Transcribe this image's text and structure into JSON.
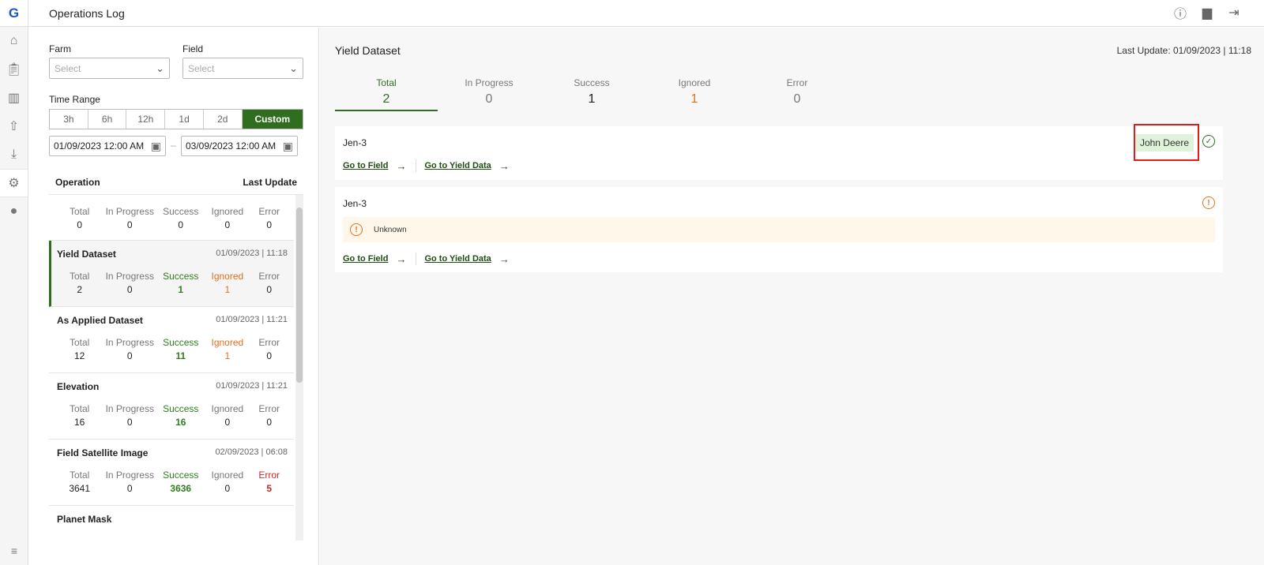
{
  "app": {
    "logo": "G",
    "title": "Operations Log"
  },
  "rail": [
    "home-icon",
    "clipboard-icon",
    "map-icon",
    "upload-icon",
    "download-icon",
    "operations-icon",
    "account-icon"
  ],
  "header_icons": [
    "help-icon",
    "chat-icon",
    "logout-icon"
  ],
  "filters": {
    "farm_label": "Farm",
    "farm_placeholder": "Select",
    "field_label": "Field",
    "field_placeholder": "Select",
    "time_range_label": "Time Range",
    "ranges": [
      "3h",
      "6h",
      "12h",
      "1d",
      "2d",
      "Custom"
    ],
    "selected_range": "Custom",
    "start": "01/09/2023 12:00 AM",
    "end": "03/09/2023 12:00 AM",
    "dash": "–"
  },
  "list_header": {
    "operation": "Operation",
    "last_update": "Last Update"
  },
  "stat_labels": [
    "Total",
    "In Progress",
    "Success",
    "Ignored",
    "Error"
  ],
  "operations": [
    {
      "name": "",
      "date": "",
      "values": [
        "0",
        "0",
        "0",
        "0",
        "0"
      ]
    },
    {
      "name": "Yield Dataset",
      "date": "01/09/2023 | 11:18",
      "values": [
        "2",
        "0",
        "1",
        "1",
        "0"
      ]
    },
    {
      "name": "As Applied Dataset",
      "date": "01/09/2023 | 11:21",
      "values": [
        "12",
        "0",
        "11",
        "1",
        "0"
      ]
    },
    {
      "name": "Elevation",
      "date": "01/09/2023 | 11:21",
      "values": [
        "16",
        "0",
        "16",
        "0",
        "0"
      ]
    },
    {
      "name": "Field Satellite Image",
      "date": "02/09/2023 | 06:08",
      "values": [
        "3641",
        "0",
        "3636",
        "0",
        "5"
      ]
    },
    {
      "name": "Planet Mask",
      "date": "",
      "values": [
        "",
        "",
        "",
        "",
        ""
      ]
    }
  ],
  "main": {
    "title": "Yield Dataset",
    "last_update": "Last Update: 01/09/2023 | 11:18",
    "tabs": [
      {
        "label": "Total",
        "value": "2"
      },
      {
        "label": "In Progress",
        "value": "0"
      },
      {
        "label": "Success",
        "value": "1"
      },
      {
        "label": "Ignored",
        "value": "1"
      },
      {
        "label": "Error",
        "value": "0"
      }
    ],
    "records": [
      {
        "name": "Jen-3",
        "badge": "John Deere",
        "status": "success",
        "go_field": "Go to Field",
        "go_yield": "Go to Yield Data"
      },
      {
        "name": "Jen-3",
        "status": "warning",
        "message": "Unknown",
        "go_field": "Go to Field",
        "go_yield": "Go to Yield Data"
      }
    ]
  },
  "colors": {
    "accent": "#2f6e1f",
    "warning": "#e2711d",
    "error": "#c62828",
    "highlight": "#e21b1b"
  }
}
